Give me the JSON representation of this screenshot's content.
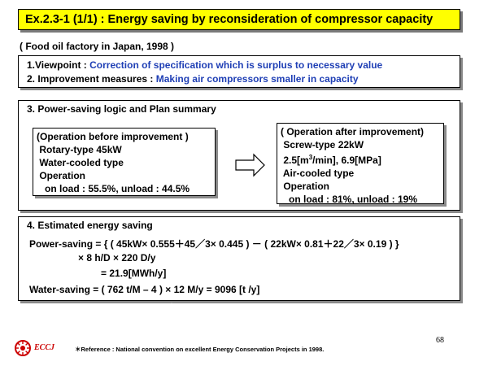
{
  "title": "Ex.2.3-1 (1/1) : Energy saving by reconsideration of compressor capacity",
  "subtitle": "( Food oil factory in Japan, 1998 )",
  "viewpoint": {
    "label": "1.Viewpoint : ",
    "value": "Correction of specification which is surplus to necessary value",
    "measures_label": "2. Improvement measures : ",
    "measures_value": "Making air compressors smaller in capacity"
  },
  "logic": {
    "header": "3. Power-saving logic and Plan summary",
    "before": [
      "(Operation before improvement )",
      " Rotary-type 45kW",
      " Water-cooled type",
      " Operation",
      "   on load : 55.5%, unload : 44.5%"
    ],
    "after_lines": [
      "( Operation after improvement)",
      " Screw-type 22kW"
    ],
    "after_flow_prefix": " 2.5[m",
    "after_flow_sup": "3",
    "after_flow_suffix": "/min], 6.9[MPa]",
    "after_rest": [
      " Air-cooled type",
      " Operation",
      "   on load : 81%, unload : 19%"
    ]
  },
  "saving": {
    "header": "4. Estimated energy saving",
    "line1": "Power-saving = { ( 45kW× 0.555＋45／3× 0.445 ) － ( 22kW× 0.81＋22／3× 0.19 ) }",
    "line2": "× 8 h/D  × 220 D/y",
    "line3": "= 21.9[MWh/y]",
    "line4": "Water-saving = ( 762 t/M – 4 ) × 12 M/y = 9096 [t /y]"
  },
  "footer": {
    "logo_text": "ECCJ",
    "reference": "＊Reference : National convention on excellent Energy Conservation Projects in 1998.",
    "page_number": "68"
  },
  "colors": {
    "title_bg": "#ffff00",
    "accent_blue": "#1f3fb5",
    "logo_red": "#cc0000"
  },
  "icons": {
    "arrow": "right-arrow-icon",
    "logo": "eccj-logo-icon"
  }
}
